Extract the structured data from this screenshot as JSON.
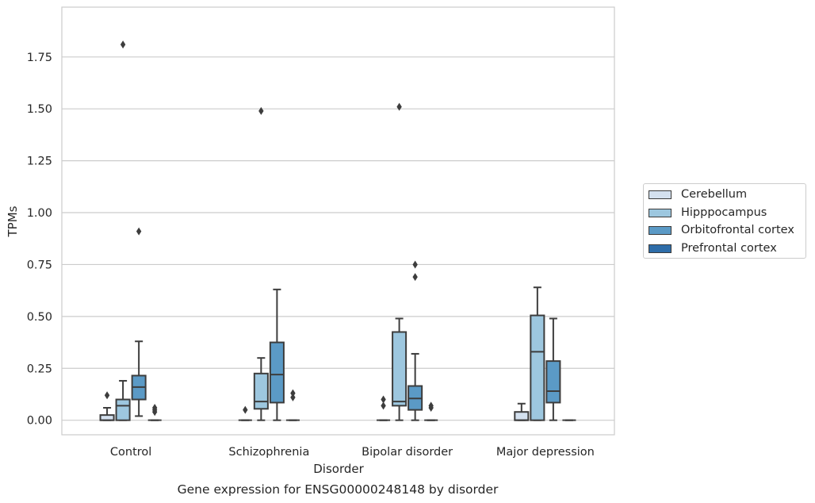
{
  "chart_data": {
    "type": "boxplot",
    "title": "Gene expression for ENSG00000248148 by disorder",
    "xlabel": "Disorder",
    "ylabel": "TPMs",
    "ylim": [
      -0.07,
      1.99
    ],
    "yticks": [
      "0.00",
      "0.25",
      "0.50",
      "0.75",
      "1.00",
      "1.25",
      "1.50",
      "1.75"
    ],
    "categories": [
      "Control",
      "Schizophrenia",
      "Bipolar disorder",
      "Major depression"
    ],
    "grid": "horizontal",
    "legend_position": "right",
    "series": [
      {
        "name": "Cerebellum",
        "color": "#d4e1ef",
        "boxes": [
          {
            "wlo": 0.0,
            "q1": 0.0,
            "median": 0.0,
            "q3": 0.025,
            "whi": 0.06,
            "outliers": [
              0.12
            ]
          },
          {
            "wlo": 0.0,
            "q1": 0.0,
            "median": 0.0,
            "q3": 0.0,
            "whi": 0.0,
            "outliers": [
              0.05
            ]
          },
          {
            "wlo": 0.0,
            "q1": 0.0,
            "median": 0.0,
            "q3": 0.0,
            "whi": 0.0,
            "outliers": [
              0.07,
              0.1
            ]
          },
          {
            "wlo": 0.0,
            "q1": 0.0,
            "median": 0.0,
            "q3": 0.04,
            "whi": 0.08,
            "outliers": []
          }
        ]
      },
      {
        "name": "Hipppocampus",
        "color": "#9dc7df",
        "boxes": [
          {
            "wlo": 0.0,
            "q1": 0.0,
            "median": 0.07,
            "q3": 0.1,
            "whi": 0.19,
            "outliers": [
              1.81
            ]
          },
          {
            "wlo": 0.0,
            "q1": 0.055,
            "median": 0.09,
            "q3": 0.225,
            "whi": 0.3,
            "outliers": [
              1.49
            ]
          },
          {
            "wlo": 0.0,
            "q1": 0.07,
            "median": 0.09,
            "q3": 0.425,
            "whi": 0.49,
            "outliers": [
              1.51
            ]
          },
          {
            "wlo": 0.0,
            "q1": 0.0,
            "median": 0.33,
            "q3": 0.505,
            "whi": 0.64,
            "outliers": []
          }
        ]
      },
      {
        "name": "Orbitofrontal cortex",
        "color": "#5b9ac6",
        "boxes": [
          {
            "wlo": 0.02,
            "q1": 0.1,
            "median": 0.16,
            "q3": 0.215,
            "whi": 0.38,
            "outliers": [
              0.91
            ]
          },
          {
            "wlo": 0.0,
            "q1": 0.085,
            "median": 0.22,
            "q3": 0.375,
            "whi": 0.63,
            "outliers": []
          },
          {
            "wlo": 0.0,
            "q1": 0.05,
            "median": 0.105,
            "q3": 0.165,
            "whi": 0.32,
            "outliers": [
              0.69,
              0.75
            ]
          },
          {
            "wlo": 0.0,
            "q1": 0.085,
            "median": 0.14,
            "q3": 0.285,
            "whi": 0.49,
            "outliers": []
          }
        ]
      },
      {
        "name": "Prefrontal cortex",
        "color": "#2e6da9",
        "boxes": [
          {
            "wlo": 0.0,
            "q1": 0.0,
            "median": 0.0,
            "q3": 0.0,
            "whi": 0.0,
            "outliers": [
              0.04,
              0.05,
              0.06
            ]
          },
          {
            "wlo": 0.0,
            "q1": 0.0,
            "median": 0.0,
            "q3": 0.0,
            "whi": 0.0,
            "outliers": [
              0.11,
              0.13
            ]
          },
          {
            "wlo": 0.0,
            "q1": 0.0,
            "median": 0.0,
            "q3": 0.0,
            "whi": 0.0,
            "outliers": [
              0.06,
              0.07
            ]
          },
          {
            "wlo": 0.0,
            "q1": 0.0,
            "median": 0.0,
            "q3": 0.0,
            "whi": 0.0,
            "outliers": []
          }
        ]
      }
    ]
  }
}
